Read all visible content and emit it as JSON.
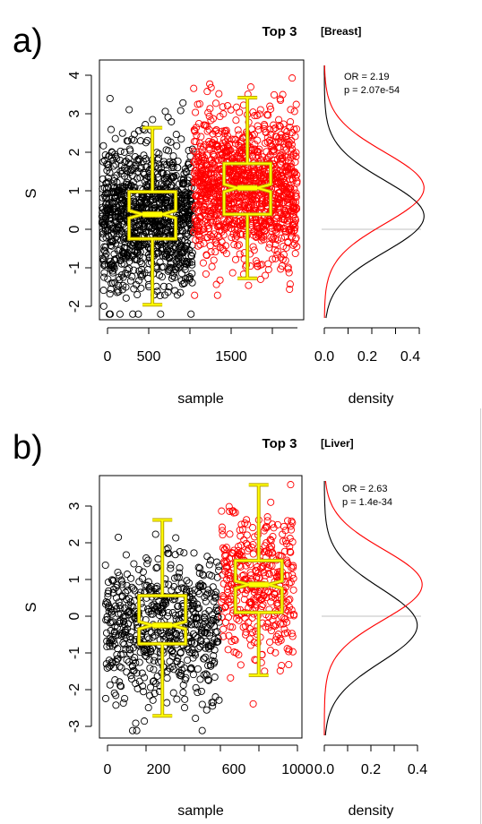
{
  "panels": [
    {
      "letter": "a)",
      "title": "Top 3",
      "tissue": "[Breast]",
      "ylabel": "S",
      "xlabel": "sample",
      "density_xlabel": "density",
      "annot_or": "OR = 2.19",
      "annot_p": "p = 2.07e-54",
      "x_ticks": [
        "0",
        "500",
        "1500"
      ],
      "y_ticks": [
        "-2",
        "-1",
        "0",
        "1",
        "2",
        "3",
        "4"
      ],
      "density_ticks": [
        "0.0",
        "0.2",
        "0.4"
      ]
    },
    {
      "letter": "b)",
      "title": "Top 3",
      "tissue": "[Liver]",
      "ylabel": "S",
      "xlabel": "sample",
      "density_xlabel": "density",
      "annot_or": "OR = 2.63",
      "annot_p": "p = 1.4e-34",
      "x_ticks": [
        "0",
        "200",
        "600",
        "1000"
      ],
      "y_ticks": [
        "-3",
        "-2",
        "-1",
        "0",
        "1",
        "2",
        "3"
      ],
      "density_ticks": [
        "0.0",
        "0.2",
        "0.4"
      ]
    }
  ],
  "chart_data": [
    {
      "type": "scatter",
      "title": "Top 3",
      "subtitle": "[Breast]",
      "xlabel": "sample",
      "ylabel": "S",
      "xlim": [
        -30,
        2400
      ],
      "ylim": [
        -2.45,
        4.45
      ],
      "x_ticks": [
        0,
        500,
        1500
      ],
      "y_ticks": [
        -2,
        -1,
        0,
        1,
        2,
        3,
        4
      ],
      "colors": {
        "group1": "#000000",
        "group2": "#ff0000",
        "box": "#ffff00",
        "box_edge": "#b8a000"
      },
      "series": [
        {
          "color": "black",
          "x_range": [
            0,
            1080
          ],
          "n": 1080,
          "mean": 0.3,
          "sd": 0.95,
          "y_range": [
            -2.3,
            3.6
          ]
        },
        {
          "color": "red",
          "x_range": [
            1090,
            2320
          ],
          "n": 1230,
          "mean": 1.05,
          "sd": 0.95,
          "y_range": [
            -1.8,
            4.15
          ]
        }
      ],
      "boxplots": [
        {
          "x": 600,
          "min": -2.05,
          "q1": -0.3,
          "median": 0.35,
          "q3": 0.95,
          "max": 2.65,
          "notch": [
            0.25,
            0.45
          ]
        },
        {
          "x": 1730,
          "min": -1.35,
          "q1": 0.35,
          "median": 1.05,
          "q3": 1.7,
          "max": 3.45,
          "notch": [
            0.95,
            1.15
          ]
        }
      ],
      "density": {
        "xlabel": "density",
        "xlim": [
          0,
          0.45
        ],
        "ticks": [
          0.0,
          0.2,
          0.4
        ],
        "annotations": [
          "OR = 2.19",
          "p = 2.07e-54"
        ],
        "reference_line_y": 0,
        "curves": [
          {
            "color": "black",
            "mean": 0.3,
            "sd": 0.95
          },
          {
            "color": "red",
            "mean": 1.05,
            "sd": 0.95
          }
        ]
      }
    },
    {
      "type": "scatter",
      "title": "Top 3",
      "subtitle": "[Liver]",
      "xlabel": "sample",
      "ylabel": "S",
      "xlim": [
        -30,
        1000
      ],
      "ylim": [
        -3.3,
        3.8
      ],
      "x_ticks": [
        0,
        200,
        600,
        1000
      ],
      "y_ticks": [
        -3,
        -2,
        -1,
        0,
        1,
        2,
        3
      ],
      "colors": {
        "group1": "#000000",
        "group2": "#ff0000",
        "box": "#ffff00",
        "box_edge": "#b8a000"
      },
      "series": [
        {
          "color": "black",
          "x_range": [
            0,
            580
          ],
          "n": 620,
          "mean": -0.25,
          "sd": 1.0,
          "y_range": [
            -3.1,
            2.85
          ]
        },
        {
          "color": "red",
          "x_range": [
            590,
            960
          ],
          "n": 400,
          "mean": 0.85,
          "sd": 0.95,
          "y_range": [
            -2.8,
            3.6
          ]
        }
      ],
      "boxplots": [
        {
          "x": 290,
          "min": -2.7,
          "q1": -0.75,
          "median": -0.25,
          "q3": 0.55,
          "max": 2.6,
          "notch": [
            -0.35,
            -0.15
          ]
        },
        {
          "x": 780,
          "min": -1.6,
          "q1": 0.1,
          "median": 0.85,
          "q3": 1.5,
          "max": 3.55,
          "notch": [
            0.75,
            0.95
          ]
        }
      ],
      "density": {
        "xlabel": "density",
        "xlim": [
          0,
          0.45
        ],
        "ticks": [
          0.0,
          0.2,
          0.4
        ],
        "annotations": [
          "OR = 2.63",
          "p = 1.4e-34"
        ],
        "reference_line_y": 0,
        "curves": [
          {
            "color": "black",
            "mean": -0.25,
            "sd": 1.0
          },
          {
            "color": "red",
            "mean": 0.85,
            "sd": 0.95
          }
        ]
      }
    }
  ]
}
